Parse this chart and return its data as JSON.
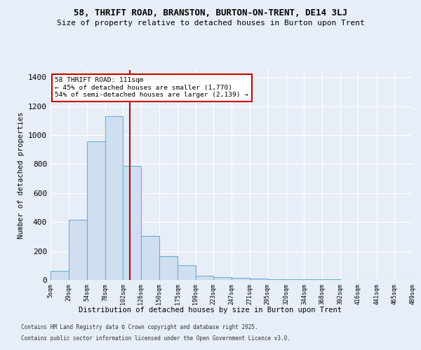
{
  "title": "58, THRIFT ROAD, BRANSTON, BURTON-ON-TRENT, DE14 3LJ",
  "subtitle": "Size of property relative to detached houses in Burton upon Trent",
  "xlabel": "Distribution of detached houses by size in Burton upon Trent",
  "ylabel": "Number of detached properties",
  "bar_values": [
    65,
    415,
    955,
    1130,
    790,
    305,
    165,
    100,
    30,
    20,
    15,
    10,
    5,
    5,
    3,
    3,
    2,
    2,
    1,
    1
  ],
  "bin_edges": [
    5,
    29,
    54,
    78,
    102,
    126,
    150,
    175,
    199,
    223,
    247,
    271,
    295,
    320,
    344,
    368,
    392,
    416,
    441,
    465,
    489
  ],
  "xtick_labels": [
    "5sqm",
    "29sqm",
    "54sqm",
    "78sqm",
    "102sqm",
    "126sqm",
    "150sqm",
    "175sqm",
    "199sqm",
    "223sqm",
    "247sqm",
    "271sqm",
    "295sqm",
    "320sqm",
    "344sqm",
    "368sqm",
    "392sqm",
    "416sqm",
    "441sqm",
    "465sqm",
    "489sqm"
  ],
  "bar_color": "#d0dff0",
  "bar_edge_color": "#6baed6",
  "vline_x": 111,
  "vline_color": "#cc0000",
  "ylim": [
    0,
    1450
  ],
  "xlim": [
    5,
    489
  ],
  "annotation_text": "58 THRIFT ROAD: 111sqm\n← 45% of detached houses are smaller (1,770)\n54% of semi-detached houses are larger (2,139) →",
  "annotation_box_color": "#ffffff",
  "annotation_box_edge": "#cc0000",
  "yticks": [
    0,
    200,
    400,
    600,
    800,
    1000,
    1200,
    1400
  ],
  "footer1": "Contains HM Land Registry data © Crown copyright and database right 2025.",
  "footer2": "Contains public sector information licensed under the Open Government Licence v3.0.",
  "bg_color": "#e8eef8",
  "grid_color": "#ffffff",
  "title_fontsize": 9,
  "subtitle_fontsize": 8
}
